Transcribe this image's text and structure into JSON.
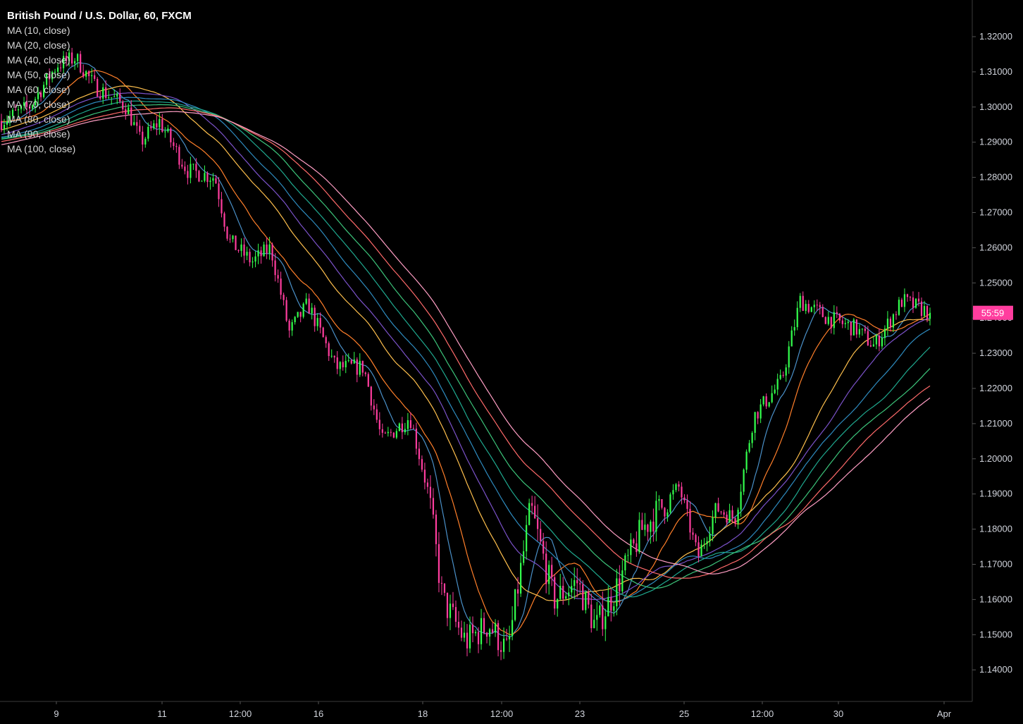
{
  "chart_data": {
    "type": "candlestick",
    "title": "British Pound / U.S. Dollar, 60, FXCM",
    "indicators": [
      "MA (10, close)",
      "MA (20, close)",
      "MA (40, close)",
      "MA (50, close)",
      "MA (60, close)",
      "MA (70, close)",
      "MA (80, close)",
      "MA (90, close)",
      "MA (100, close)"
    ],
    "ma_colors": [
      "#4a90c8",
      "#ff7f2a",
      "#ffc04d",
      "#7b52c9",
      "#2e8bbf",
      "#1fa98f",
      "#3cc47a",
      "#ff6a6a",
      "#ff9ec4"
    ],
    "ylim": [
      1.135,
      1.325
    ],
    "y_ticks": [
      "1.32000",
      "1.31000",
      "1.30000",
      "1.29000",
      "1.28000",
      "1.27000",
      "1.26000",
      "1.25000",
      "1.24000",
      "1.23000",
      "1.22000",
      "1.21000",
      "1.20000",
      "1.19000",
      "1.18000",
      "1.17000",
      "1.16000",
      "1.15000",
      "1.14000"
    ],
    "x_ticks": [
      "9",
      "11",
      "12:00",
      "16",
      "18",
      "12:00",
      "23",
      "25",
      "12:00",
      "30",
      "Apr"
    ],
    "countdown": "55:59",
    "last_price": 1.2415,
    "price_path": [
      [
        0,
        1.296
      ],
      [
        0.03,
        1.3
      ],
      [
        0.06,
        1.312
      ],
      [
        0.08,
        1.314
      ],
      [
        0.1,
        1.306
      ],
      [
        0.135,
        1.3
      ],
      [
        0.15,
        1.29
      ],
      [
        0.17,
        1.296
      ],
      [
        0.2,
        1.282
      ],
      [
        0.23,
        1.28
      ],
      [
        0.245,
        1.262
      ],
      [
        0.27,
        1.256
      ],
      [
        0.29,
        1.26
      ],
      [
        0.31,
        1.236
      ],
      [
        0.33,
        1.244
      ],
      [
        0.36,
        1.226
      ],
      [
        0.39,
        1.226
      ],
      [
        0.41,
        1.205
      ],
      [
        0.44,
        1.212
      ],
      [
        0.46,
        1.19
      ],
      [
        0.475,
        1.16
      ],
      [
        0.5,
        1.148
      ],
      [
        0.525,
        1.153
      ],
      [
        0.545,
        1.145
      ],
      [
        0.57,
        1.186
      ],
      [
        0.595,
        1.16
      ],
      [
        0.62,
        1.165
      ],
      [
        0.64,
        1.152
      ],
      [
        0.66,
        1.162
      ],
      [
        0.69,
        1.18
      ],
      [
        0.73,
        1.192
      ],
      [
        0.75,
        1.172
      ],
      [
        0.77,
        1.186
      ],
      [
        0.79,
        1.183
      ],
      [
        0.81,
        1.212
      ],
      [
        0.84,
        1.222
      ],
      [
        0.86,
        1.245
      ],
      [
        0.89,
        1.24
      ],
      [
        0.92,
        1.237
      ],
      [
        0.94,
        1.232
      ],
      [
        0.97,
        1.245
      ],
      [
        1.0,
        1.2415
      ]
    ]
  }
}
